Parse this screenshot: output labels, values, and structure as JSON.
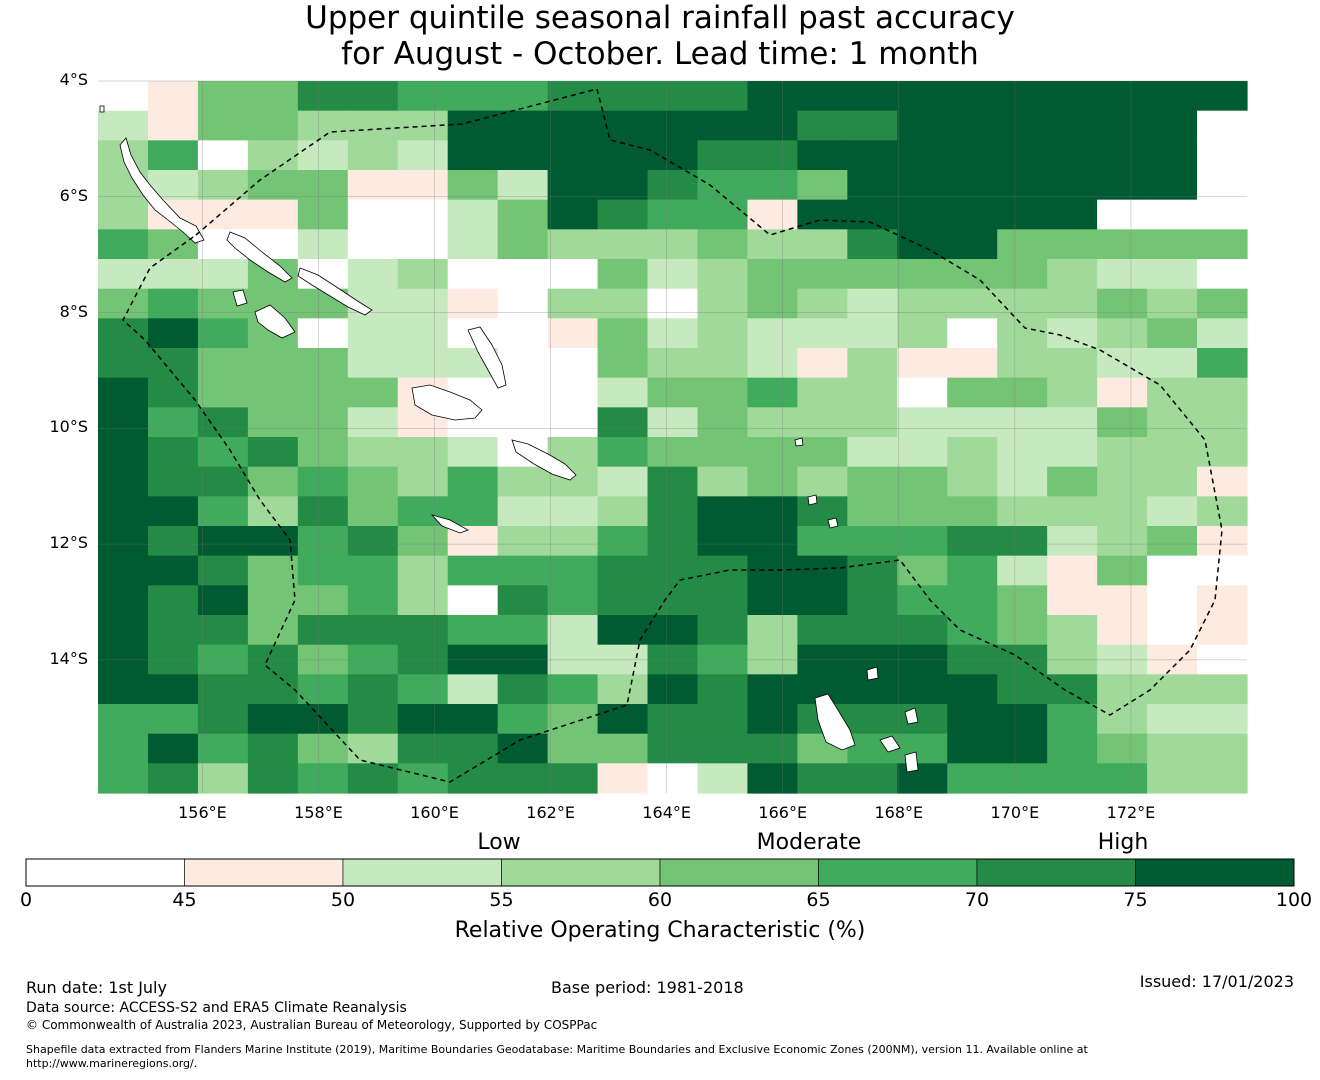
{
  "title": {
    "line1": "Upper quintile seasonal rainfall past accuracy",
    "line2": "for August - October. Lead time: 1 month"
  },
  "map": {
    "lat_labels": [
      "4°S",
      "6°S",
      "8°S",
      "10°S",
      "12°S",
      "14°S"
    ],
    "lon_labels": [
      "156°E",
      "158°E",
      "160°E",
      "162°E",
      "164°E",
      "166°E",
      "168°E",
      "170°E",
      "172°E"
    ],
    "extent": {
      "lon_min": 154.2,
      "lon_max": 174.0,
      "lat_min": -16.3,
      "lat_max": -4.0
    },
    "grid_cell_degrees": 0.83,
    "roc_grid": [
      "01446655566667777777777",
      "2144333777777766777777",
      "3503232777776677777777",
      "3234411427765547777777",
      "31114002476551777777",
      "54002002433343367744444",
      "2224023000423444444322",
      "45444221033034323333434",
      "67540220014232223032342",
      "66444222004332131133225",
      "76444410002445330443133",
      "75644210006243332222433",
      "76564332035444422322333",
      "76645435332634344324331",
      "77536455223677644433323",
      "76775641335677555662341",
      "77645535556667764521400",
      "76744530656667765541101",
      "76646665527763666543101",
      "76564567722653777663210",
      "77665652653767777766333",
      "55677677547667666775322",
      "57564366744666455775433",
      "56365656661027667555533"
    ]
  },
  "legend": {
    "category_labels": [
      "Low",
      "Moderate",
      "High"
    ],
    "ticks": [
      "0",
      "45",
      "50",
      "55",
      "60",
      "65",
      "70",
      "75",
      "100"
    ],
    "colors": [
      "#ffffff",
      "#fdebe2",
      "#c7e9c0",
      "#a1d99b",
      "#74c476",
      "#41ab5d",
      "#238b45",
      "#005a32"
    ],
    "title": "Relative Operating Characteristic (%)"
  },
  "footer": {
    "run_date": "Run date: 1st July",
    "base_period": "Base period: 1981-2018",
    "issued": "Issued: 17/01/2023",
    "data_source": "Data source: ACCESS-S2 and ERA5 Climate Reanalysis",
    "copyright": "© Commonwealth of Australia 2023, Australian Bureau of Meteorology, Supported by COSPPac",
    "shapefile_line1": "Shapefile data extracted from Flanders Marine Institute (2019), Maritime Boundaries Geodatabase: Maritime Boundaries and Exclusive Economic Zones (200NM), version 11. Available online at",
    "shapefile_line2": "http://www.marineregions.org/."
  }
}
